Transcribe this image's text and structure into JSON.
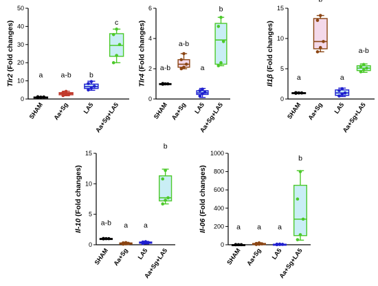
{
  "chart_data": [
    {
      "type": "box",
      "title": "",
      "ylabel_gene": "Tlr2",
      "ylabel_rest": " (Fold changes)",
      "ylim": [
        0,
        50
      ],
      "yticks": [
        "0",
        "10",
        "20",
        "30",
        "40",
        "50"
      ],
      "categories": [
        "SHAM",
        "Aa+Sg",
        "LA5",
        "Aa+Sg+LA5"
      ],
      "colors": [
        "#000000",
        "#c0392b",
        "#1f1fcf",
        "#4cc92a"
      ],
      "fills": [
        "#f4d9ea",
        "#f4d9ea",
        "#c9eef5",
        "#c9eef5"
      ],
      "boxes": [
        {
          "min": 0.7,
          "q1": 0.9,
          "median": 1.0,
          "q3": 1.1,
          "max": 1.3,
          "points": [
            0.8,
            1.0,
            1.1,
            1.2
          ]
        },
        {
          "min": 1.8,
          "q1": 2.3,
          "median": 2.9,
          "q3": 3.5,
          "max": 4.3,
          "points": [
            1.9,
            2.5,
            3.0,
            3.6,
            4.2
          ]
        },
        {
          "min": 4.8,
          "q1": 5.8,
          "median": 6.8,
          "q3": 8.2,
          "max": 9.8,
          "points": [
            5.0,
            6.0,
            7.0,
            8.5,
            9.6
          ]
        },
        {
          "min": 20.0,
          "q1": 23.5,
          "median": 29.5,
          "q3": 36.0,
          "max": 38.5,
          "points": [
            20.0,
            24.0,
            30.0,
            35.5,
            38.5
          ]
        }
      ],
      "significance": [
        "a",
        "a-b",
        "b",
        "c"
      ],
      "significance_y": [
        12,
        12,
        12,
        41
      ]
    },
    {
      "type": "box",
      "title": "",
      "ylabel_gene": "Tlr4",
      "ylabel_rest": " (Fold changes)",
      "ylim": [
        0,
        6
      ],
      "yticks": [
        "0",
        "2",
        "4",
        "6"
      ],
      "categories": [
        "SHAM",
        "Aa+Sg",
        "LA5",
        "Aa+Sg+LA5"
      ],
      "colors": [
        "#000000",
        "#8b4513",
        "#1f1fcf",
        "#4cc92a"
      ],
      "fills": [
        "#f4d9ea",
        "#f4d9ea",
        "#c9eef5",
        "#c9eef5"
      ],
      "boxes": [
        {
          "min": 0.97,
          "q1": 0.98,
          "median": 1.0,
          "q3": 1.02,
          "max": 1.03,
          "points": [
            0.98,
            1.0,
            1.0,
            1.02
          ]
        },
        {
          "min": 2.0,
          "q1": 2.1,
          "median": 2.3,
          "q3": 2.6,
          "max": 3.0,
          "points": [
            2.0,
            2.1,
            2.3,
            2.6,
            3.0
          ]
        },
        {
          "min": 0.1,
          "q1": 0.3,
          "median": 0.4,
          "q3": 0.55,
          "max": 0.7,
          "points": [
            0.2,
            0.35,
            0.45,
            0.55,
            0.65
          ]
        },
        {
          "min": 2.2,
          "q1": 2.3,
          "median": 3.9,
          "q3": 5.0,
          "max": 5.4,
          "points": [
            2.2,
            2.4,
            3.8,
            4.8,
            5.4
          ]
        }
      ],
      "significance": [
        "a-b",
        "a-b",
        "a",
        "b"
      ],
      "significance_y": [
        1.9,
        3.5,
        1.9,
        5.8
      ]
    },
    {
      "type": "box",
      "title": "",
      "ylabel_gene": "Il1β",
      "ylabel_rest": " (Fold changes)",
      "ylim": [
        0,
        15
      ],
      "yticks": [
        "0",
        "5",
        "10",
        "15"
      ],
      "categories": [
        "SHAM",
        "Aa+Sg",
        "LA5",
        "Aa+Sg+LA5"
      ],
      "colors": [
        "#000000",
        "#8b4513",
        "#1f1fcf",
        "#4cc92a"
      ],
      "fills": [
        "#f4d9ea",
        "#f4d9ea",
        "#c9eef5",
        "#c9eef5"
      ],
      "boxes": [
        {
          "min": 0.9,
          "q1": 0.95,
          "median": 1.0,
          "q3": 1.05,
          "max": 1.1,
          "points": [
            0.95,
            1.0,
            1.0,
            1.05
          ]
        },
        {
          "min": 7.8,
          "q1": 8.3,
          "median": 9.5,
          "q3": 13.3,
          "max": 13.8,
          "points": [
            7.8,
            8.5,
            9.5,
            13.0,
            13.8
          ]
        },
        {
          "min": 0.4,
          "q1": 0.6,
          "median": 1.0,
          "q3": 1.5,
          "max": 1.8,
          "points": [
            0.5,
            0.8,
            1.0,
            1.4,
            1.7
          ]
        },
        {
          "min": 4.4,
          "q1": 4.7,
          "median": 5.1,
          "q3": 5.5,
          "max": 5.8,
          "points": [
            4.5,
            4.8,
            5.1,
            5.4,
            5.7
          ]
        }
      ],
      "significance": [
        "a",
        "b",
        "a",
        "a-b"
      ],
      "significance_y": [
        3.2,
        16.1,
        3.2,
        7.6
      ]
    },
    {
      "type": "box",
      "title": "",
      "ylabel_gene": "Il-10",
      "ylabel_rest": " (Fold changes)",
      "ylim": [
        0,
        15
      ],
      "yticks": [
        "0",
        "5",
        "10",
        "15"
      ],
      "categories": [
        "SHAM",
        "Aa+Sg",
        "LA5",
        "Aa+Sg+LA5"
      ],
      "colors": [
        "#000000",
        "#8b4513",
        "#1f1fcf",
        "#4cc92a"
      ],
      "fills": [
        "#f4d9ea",
        "#f4d9ea",
        "#c9eef5",
        "#c9eef5"
      ],
      "boxes": [
        {
          "min": 0.95,
          "q1": 0.97,
          "median": 1.0,
          "q3": 1.03,
          "max": 1.05,
          "points": [
            0.97,
            1.0,
            1.0,
            1.03
          ]
        },
        {
          "min": 0.05,
          "q1": 0.1,
          "median": 0.2,
          "q3": 0.3,
          "max": 0.4,
          "points": [
            0.1,
            0.15,
            0.2,
            0.3,
            0.35
          ]
        },
        {
          "min": 0.15,
          "q1": 0.25,
          "median": 0.35,
          "q3": 0.45,
          "max": 0.55,
          "points": [
            0.2,
            0.3,
            0.35,
            0.45,
            0.5
          ]
        },
        {
          "min": 6.7,
          "q1": 7.2,
          "median": 7.7,
          "q3": 11.3,
          "max": 12.4,
          "points": [
            6.7,
            7.3,
            7.7,
            10.8,
            12.2
          ]
        }
      ],
      "significance": [
        "a-b",
        "a",
        "a",
        "b"
      ],
      "significance_y": [
        3.2,
        2.8,
        2.8,
        15.8
      ]
    },
    {
      "type": "box",
      "title": "",
      "ylabel_gene": "Il-06",
      "ylabel_rest": " (Fold changes)",
      "ylim": [
        0,
        1000
      ],
      "yticks": [
        "0",
        "200",
        "400",
        "600",
        "800",
        "1000"
      ],
      "categories": [
        "SHAM",
        "Aa+Sg",
        "LA5",
        "Aa+Sg+LA5"
      ],
      "colors": [
        "#000000",
        "#8b4513",
        "#1f1fcf",
        "#4cc92a"
      ],
      "fills": [
        "#f4d9ea",
        "#f4d9ea",
        "#c9eef5",
        "#c9eef5"
      ],
      "boxes": [
        {
          "min": 0.5,
          "q1": 0.8,
          "median": 1.0,
          "q3": 1.2,
          "max": 1.5,
          "points": [
            0.8,
            1.0,
            1.0,
            1.2
          ]
        },
        {
          "min": 2,
          "q1": 4,
          "median": 8,
          "q3": 14,
          "max": 22,
          "points": [
            3,
            6,
            9,
            14,
            20
          ]
        },
        {
          "min": 1,
          "q1": 2,
          "median": 4,
          "q3": 6,
          "max": 8,
          "points": [
            1,
            3,
            4,
            6,
            7
          ]
        },
        {
          "min": 50,
          "q1": 100,
          "median": 280,
          "q3": 650,
          "max": 810,
          "points": [
            55,
            110,
            280,
            500,
            800
          ]
        }
      ],
      "significance": [
        "a",
        "a",
        "a",
        "b"
      ],
      "significance_y": [
        170,
        170,
        170,
        920
      ]
    }
  ]
}
